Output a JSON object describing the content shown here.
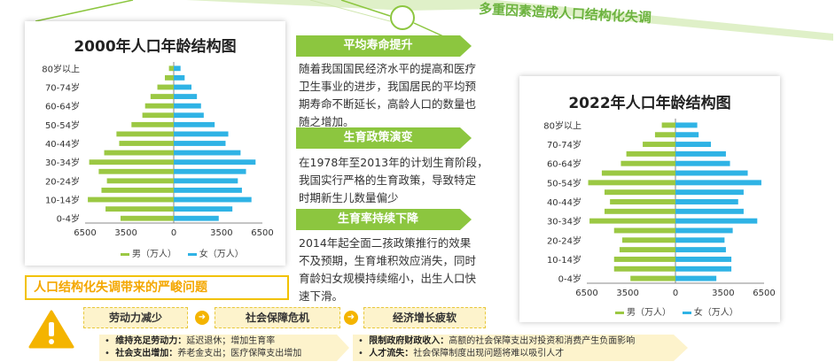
{
  "banner": {
    "title": "多重因素造成人口结构化失调"
  },
  "chart_data": [
    {
      "type": "bar",
      "title": "2000年人口年龄结构图",
      "categories": [
        "0-4岁",
        "5-9岁",
        "10-14岁",
        "15-19岁",
        "20-24岁",
        "25-29岁",
        "30-34岁",
        "35-39岁",
        "40-44岁",
        "45-49岁",
        "50-54岁",
        "55-59岁",
        "60-64岁",
        "65-69岁",
        "70-74岁",
        "75-79岁",
        "80岁以上"
      ],
      "category_tick_labels": [
        "0-4岁",
        "10-14岁",
        "20-24岁",
        "30-34岁",
        "40-44岁",
        "50-54岁",
        "60-64岁",
        "70-74岁",
        "80岁以上"
      ],
      "series": [
        {
          "name": "男（万人）",
          "color": "#9bc843",
          "values": [
            3900,
            5000,
            6300,
            5300,
            4900,
            5500,
            6200,
            5100,
            4000,
            4200,
            3100,
            2300,
            2100,
            1700,
            1200,
            650,
            350
          ]
        },
        {
          "name": "女（万人）",
          "color": "#2fb3e5",
          "values": [
            3300,
            4300,
            5700,
            5000,
            4700,
            5300,
            6000,
            4900,
            3800,
            4000,
            3000,
            2200,
            2000,
            1700,
            1300,
            800,
            500
          ]
        }
      ],
      "x_tick_labels": [
        "6500",
        "3500",
        "0",
        "3500",
        "6500"
      ],
      "xlim": [
        -6500,
        6500
      ],
      "legend": "bottom"
    },
    {
      "type": "bar",
      "title": "2022年人口年龄结构图",
      "categories": [
        "0-4岁",
        "5-9岁",
        "10-14岁",
        "15-19岁",
        "20-24岁",
        "25-29岁",
        "30-34岁",
        "35-39岁",
        "40-44岁",
        "45-49岁",
        "50-54岁",
        "55-59岁",
        "60-64岁",
        "65-69岁",
        "70-74岁",
        "75-79岁",
        "80岁以上"
      ],
      "category_tick_labels": [
        "0-4岁",
        "10-14岁",
        "20-24岁",
        "30-34岁",
        "40-44岁",
        "50-54岁",
        "60-64岁",
        "70-74岁",
        "80岁以上"
      ],
      "series": [
        {
          "name": "男（万人）",
          "color": "#9bc843",
          "values": [
            3300,
            4500,
            4500,
            4100,
            3900,
            4500,
            6300,
            5200,
            4800,
            5200,
            6400,
            5400,
            4000,
            3600,
            2400,
            1500,
            1000
          ]
        },
        {
          "name": "女（万人）",
          "color": "#2fb3e5",
          "values": [
            3000,
            4100,
            4100,
            3700,
            3600,
            4200,
            6000,
            5000,
            4600,
            5000,
            6300,
            5300,
            4000,
            3700,
            2600,
            1700,
            1600
          ]
        }
      ],
      "x_tick_labels": [
        "6500",
        "3500",
        "0",
        "3500",
        "6500"
      ],
      "xlim": [
        -6500,
        6500
      ],
      "legend": "bottom"
    }
  ],
  "sections": [
    {
      "tag": "平均寿命提升",
      "lines": [
        "随着我国国民经济水平的提高和医疗",
        "卫生事业的进步，我国居民的平均预",
        "期寿命不断延长，高龄人口的数量也",
        "随之增加。"
      ]
    },
    {
      "tag": "生育政策演变",
      "lines": [
        "在1978年至2013年的计划生育阶段，",
        "我国实行严格的生育政策，导致特定",
        "时期新生儿数量偏少"
      ]
    },
    {
      "tag": "生育率持续下降",
      "lines": [
        "2014年起全面二孩政策推行的效果",
        "不及预期，生育堆积效应消失，同时",
        "育龄妇女规模持续缩小，出生人口快",
        "速下滑。"
      ]
    }
  ],
  "problems": {
    "title": "人口结构化失调带来的严峻问题",
    "categories": [
      "劳动力减少",
      "社会保障危机",
      "经济增长疲软"
    ],
    "left_bullets": [
      {
        "key": "维持充足劳动力：",
        "text": "延迟退休；增加生育率"
      },
      {
        "key": "社会支出增加：",
        "text": "养老金支出；医疗保障支出增加"
      }
    ],
    "right_bullets": [
      {
        "key": "限制政府财政收入：",
        "text": "高额的社会保障支出对投资和消费产生负面影响"
      },
      {
        "key": "人才流失：",
        "text": "社会保障制度出现问题将难以吸引人才"
      }
    ]
  },
  "colors": {
    "accent_green": "#8cc63f",
    "male": "#9bc843",
    "female": "#2fb3e5",
    "yellow": "#f4b400"
  }
}
